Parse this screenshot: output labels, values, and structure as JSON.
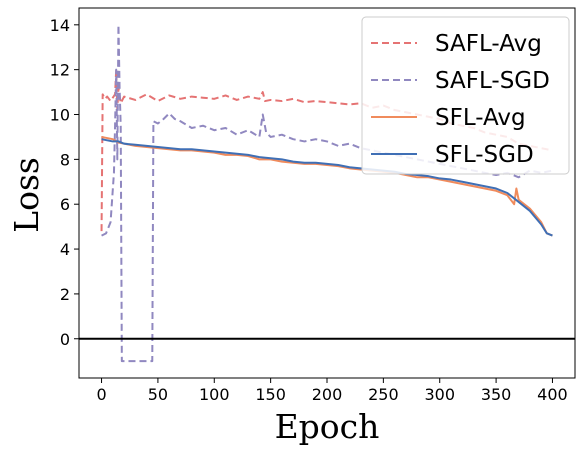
{
  "chart_data": {
    "type": "line",
    "title": "",
    "xlabel": "Epoch",
    "ylabel": "Loss",
    "xlim": [
      -20,
      420
    ],
    "ylim": [
      -1.75,
      14.75
    ],
    "x_ticks": [
      0,
      50,
      100,
      150,
      200,
      250,
      300,
      350,
      400
    ],
    "y_ticks": [
      0,
      2,
      4,
      6,
      8,
      10,
      12,
      14
    ],
    "reference_line": {
      "y": 0,
      "color": "#000000"
    },
    "grid": false,
    "legend_position": "top-right",
    "series": [
      {
        "name": "SAFL-Avg",
        "color": "#e57373",
        "dash": true,
        "points": [
          [
            0,
            4.8
          ],
          [
            1,
            10.9
          ],
          [
            3,
            10.7
          ],
          [
            5,
            10.8
          ],
          [
            8,
            10.6
          ],
          [
            10,
            10.75
          ],
          [
            12,
            10.9
          ],
          [
            13,
            12.0
          ],
          [
            14,
            10.2
          ],
          [
            15,
            11.2
          ],
          [
            17,
            10.5
          ],
          [
            20,
            10.8
          ],
          [
            30,
            10.65
          ],
          [
            40,
            10.9
          ],
          [
            50,
            10.6
          ],
          [
            60,
            10.85
          ],
          [
            70,
            10.7
          ],
          [
            80,
            10.8
          ],
          [
            90,
            10.75
          ],
          [
            100,
            10.7
          ],
          [
            110,
            10.85
          ],
          [
            120,
            10.65
          ],
          [
            130,
            10.8
          ],
          [
            140,
            10.7
          ],
          [
            143,
            11.0
          ],
          [
            145,
            10.6
          ],
          [
            150,
            10.65
          ],
          [
            160,
            10.6
          ],
          [
            170,
            10.7
          ],
          [
            180,
            10.55
          ],
          [
            190,
            10.6
          ],
          [
            200,
            10.55
          ],
          [
            210,
            10.5
          ],
          [
            220,
            10.45
          ],
          [
            230,
            10.5
          ],
          [
            240,
            10.3
          ],
          [
            250,
            10.4
          ],
          [
            260,
            10.2
          ],
          [
            270,
            10.1
          ],
          [
            280,
            10.0
          ],
          [
            290,
            9.9
          ],
          [
            300,
            9.8
          ],
          [
            310,
            9.6
          ],
          [
            320,
            9.5
          ],
          [
            330,
            9.4
          ],
          [
            340,
            9.2
          ],
          [
            350,
            9.1
          ],
          [
            360,
            9.0
          ],
          [
            370,
            8.7
          ],
          [
            380,
            8.6
          ],
          [
            390,
            8.5
          ],
          [
            400,
            8.4
          ]
        ]
      },
      {
        "name": "SAFL-SGD",
        "color": "#9088c0",
        "dash": true,
        "points": [
          [
            0,
            4.6
          ],
          [
            4,
            4.7
          ],
          [
            8,
            5.2
          ],
          [
            11,
            7.4
          ],
          [
            12,
            9.5
          ],
          [
            13,
            12.0
          ],
          [
            14,
            8.0
          ],
          [
            15,
            14.0
          ],
          [
            16,
            11.2
          ],
          [
            17,
            9.5
          ],
          [
            18,
            -1.0
          ],
          [
            20,
            -1.0
          ],
          [
            30,
            -1.0
          ],
          [
            40,
            -1.0
          ],
          [
            45,
            -1.0
          ],
          [
            46,
            9.7
          ],
          [
            50,
            9.6
          ],
          [
            55,
            9.8
          ],
          [
            60,
            10.05
          ],
          [
            65,
            9.8
          ],
          [
            70,
            9.7
          ],
          [
            80,
            9.4
          ],
          [
            90,
            9.5
          ],
          [
            100,
            9.3
          ],
          [
            110,
            9.4
          ],
          [
            120,
            9.1
          ],
          [
            130,
            9.3
          ],
          [
            140,
            9.0
          ],
          [
            143,
            10.0
          ],
          [
            146,
            9.2
          ],
          [
            150,
            9.0
          ],
          [
            160,
            9.1
          ],
          [
            170,
            8.9
          ],
          [
            180,
            8.8
          ],
          [
            190,
            8.9
          ],
          [
            200,
            8.8
          ],
          [
            210,
            8.6
          ],
          [
            220,
            8.7
          ],
          [
            230,
            8.5
          ],
          [
            240,
            8.4
          ],
          [
            250,
            8.3
          ],
          [
            260,
            8.2
          ],
          [
            270,
            8.1
          ],
          [
            280,
            8.0
          ],
          [
            290,
            7.9
          ],
          [
            300,
            7.8
          ],
          [
            310,
            7.7
          ],
          [
            320,
            7.6
          ],
          [
            330,
            7.5
          ],
          [
            340,
            7.4
          ],
          [
            350,
            7.3
          ],
          [
            360,
            7.4
          ],
          [
            370,
            7.2
          ],
          [
            380,
            7.5
          ],
          [
            390,
            7.4
          ],
          [
            400,
            7.5
          ]
        ]
      },
      {
        "name": "SFL-Avg",
        "color": "#f08b5c",
        "dash": false,
        "points": [
          [
            0,
            9.0
          ],
          [
            5,
            8.95
          ],
          [
            10,
            8.9
          ],
          [
            15,
            8.75
          ],
          [
            20,
            8.7
          ],
          [
            30,
            8.6
          ],
          [
            40,
            8.55
          ],
          [
            50,
            8.5
          ],
          [
            60,
            8.45
          ],
          [
            70,
            8.4
          ],
          [
            80,
            8.4
          ],
          [
            90,
            8.35
          ],
          [
            100,
            8.3
          ],
          [
            110,
            8.2
          ],
          [
            120,
            8.2
          ],
          [
            130,
            8.15
          ],
          [
            140,
            8.0
          ],
          [
            150,
            8.0
          ],
          [
            160,
            7.9
          ],
          [
            170,
            7.85
          ],
          [
            180,
            7.8
          ],
          [
            190,
            7.8
          ],
          [
            200,
            7.75
          ],
          [
            210,
            7.7
          ],
          [
            220,
            7.6
          ],
          [
            230,
            7.55
          ],
          [
            240,
            7.5
          ],
          [
            250,
            7.45
          ],
          [
            260,
            7.4
          ],
          [
            270,
            7.3
          ],
          [
            280,
            7.2
          ],
          [
            290,
            7.2
          ],
          [
            300,
            7.1
          ],
          [
            310,
            7.0
          ],
          [
            320,
            6.9
          ],
          [
            330,
            6.8
          ],
          [
            340,
            6.7
          ],
          [
            350,
            6.6
          ],
          [
            360,
            6.4
          ],
          [
            366,
            6.0
          ],
          [
            368,
            6.7
          ],
          [
            370,
            6.2
          ],
          [
            380,
            5.8
          ],
          [
            390,
            5.2
          ],
          [
            395,
            4.7
          ],
          [
            400,
            4.6
          ]
        ]
      },
      {
        "name": "SFL-SGD",
        "color": "#3f6fb5",
        "dash": false,
        "points": [
          [
            0,
            8.9
          ],
          [
            5,
            8.85
          ],
          [
            10,
            8.8
          ],
          [
            15,
            8.8
          ],
          [
            20,
            8.7
          ],
          [
            30,
            8.65
          ],
          [
            40,
            8.6
          ],
          [
            50,
            8.55
          ],
          [
            60,
            8.5
          ],
          [
            70,
            8.45
          ],
          [
            80,
            8.45
          ],
          [
            90,
            8.4
          ],
          [
            100,
            8.35
          ],
          [
            110,
            8.3
          ],
          [
            120,
            8.25
          ],
          [
            130,
            8.2
          ],
          [
            140,
            8.1
          ],
          [
            150,
            8.05
          ],
          [
            160,
            8.0
          ],
          [
            170,
            7.9
          ],
          [
            180,
            7.85
          ],
          [
            190,
            7.85
          ],
          [
            200,
            7.8
          ],
          [
            210,
            7.75
          ],
          [
            220,
            7.65
          ],
          [
            230,
            7.6
          ],
          [
            240,
            7.55
          ],
          [
            250,
            7.5
          ],
          [
            260,
            7.45
          ],
          [
            270,
            7.35
          ],
          [
            280,
            7.3
          ],
          [
            290,
            7.25
          ],
          [
            300,
            7.15
          ],
          [
            310,
            7.1
          ],
          [
            320,
            7.0
          ],
          [
            330,
            6.9
          ],
          [
            340,
            6.8
          ],
          [
            350,
            6.7
          ],
          [
            360,
            6.5
          ],
          [
            370,
            6.1
          ],
          [
            380,
            5.7
          ],
          [
            390,
            5.1
          ],
          [
            395,
            4.7
          ],
          [
            400,
            4.6
          ]
        ]
      }
    ]
  }
}
